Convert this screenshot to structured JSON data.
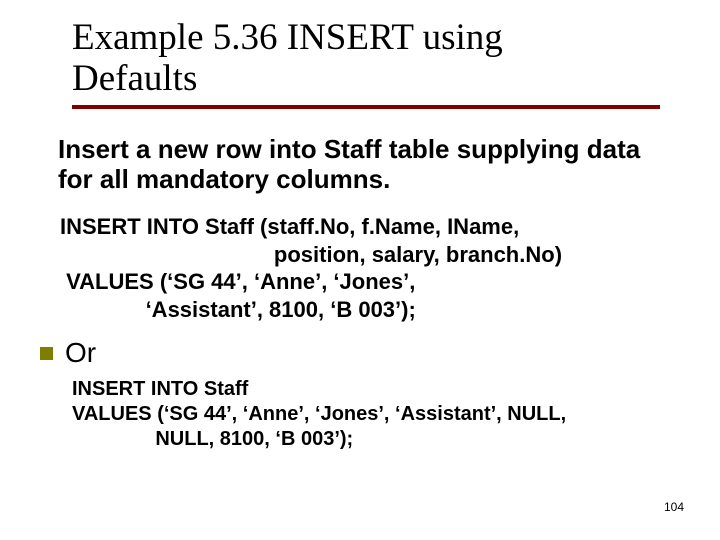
{
  "colors": {
    "title_underline": "#7e0000",
    "bullet": "#7e7e00",
    "text": "#000000",
    "background": "#ffffff"
  },
  "typography": {
    "title_family": "Times New Roman",
    "title_size_pt": 37,
    "body_family": "Arial",
    "subtitle_size_pt": 26,
    "code1_size_pt": 22,
    "or_size_pt": 28,
    "code2_size_pt": 20,
    "pagenum_size_pt": 12
  },
  "title": {
    "line1": "Example  5.36       INSERT  using",
    "line2": "Defaults"
  },
  "subtitle": "Insert a new row into Staff table supplying data for all mandatory columns.",
  "sql1": {
    "l1": "INSERT INTO Staff (staff.No, f.Name, IName,",
    "l2": "                                   position, salary, branch.No)",
    "l3": " VALUES (‘SG 44’, ‘Anne’, ‘Jones’,",
    "l4": "              ‘Assistant’, 8100, ‘B 003’);"
  },
  "or_label": "Or",
  "sql2": {
    "l1": "INSERT INTO Staff",
    "l2": "VALUES (‘SG 44’, ‘Anne’, ‘Jones’, ‘Assistant’, NULL,",
    "l3": "               NULL, 8100, ‘B 003’);"
  },
  "page_number": "104"
}
